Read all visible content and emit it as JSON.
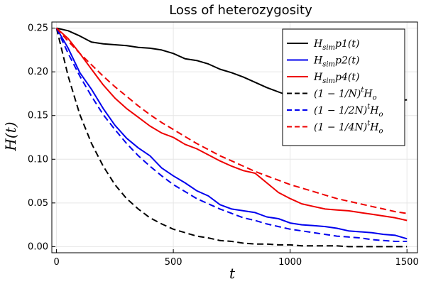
{
  "chart_data": {
    "type": "line",
    "title": "Loss of heterozygosity",
    "xlabel": "t",
    "ylabel": "H(t)",
    "xlim": [
      0,
      1500
    ],
    "ylim": [
      0,
      0.25
    ],
    "xticks": [
      0,
      500,
      1000,
      1500
    ],
    "yticks": [
      0.0,
      0.05,
      0.1,
      0.15,
      0.2,
      0.25
    ],
    "xtick_labels": [
      "0",
      "500",
      "1000",
      "1500"
    ],
    "ytick_labels": [
      "0.00",
      "0.05",
      "0.10",
      "0.15",
      "0.20",
      "0.25"
    ],
    "grid": true,
    "legend_position": "top-right",
    "series": [
      {
        "name": "H_sim p1(t)",
        "legend_label": {
          "main": "H",
          "sub": "sim",
          "rest": "p1(t)"
        },
        "color": "#000000",
        "dash": "solid",
        "x": [
          0,
          50,
          100,
          150,
          200,
          250,
          300,
          350,
          400,
          450,
          500,
          550,
          600,
          650,
          700,
          750,
          800,
          850,
          900,
          950,
          1000,
          1050,
          1100,
          1150,
          1200,
          1250,
          1300,
          1350,
          1400,
          1450,
          1500
        ],
        "y": [
          0.25,
          0.247,
          0.241,
          0.234,
          0.232,
          0.231,
          0.23,
          0.228,
          0.227,
          0.225,
          0.221,
          0.215,
          0.213,
          0.209,
          0.203,
          0.199,
          0.194,
          0.188,
          0.182,
          0.177,
          0.172,
          0.169,
          0.167,
          0.166,
          0.166,
          0.165,
          0.165,
          0.166,
          0.166,
          0.167,
          0.168
        ]
      },
      {
        "name": "H_sim p2(t)",
        "legend_label": {
          "main": "H",
          "sub": "sim",
          "rest": "p2(t)"
        },
        "color": "#0000ee",
        "dash": "solid",
        "x": [
          0,
          50,
          100,
          150,
          200,
          250,
          300,
          350,
          400,
          450,
          500,
          550,
          600,
          650,
          700,
          750,
          800,
          850,
          900,
          950,
          1000,
          1050,
          1100,
          1150,
          1200,
          1250,
          1300,
          1350,
          1400,
          1450,
          1500
        ],
        "y": [
          0.25,
          0.227,
          0.199,
          0.18,
          0.158,
          0.139,
          0.124,
          0.113,
          0.104,
          0.09,
          0.081,
          0.073,
          0.064,
          0.058,
          0.048,
          0.043,
          0.041,
          0.039,
          0.034,
          0.032,
          0.027,
          0.025,
          0.024,
          0.023,
          0.021,
          0.018,
          0.017,
          0.016,
          0.014,
          0.013,
          0.009
        ]
      },
      {
        "name": "H_sim p4(t)",
        "legend_label": {
          "main": "H",
          "sub": "sim",
          "rest": "p4(t)"
        },
        "color": "#ee0000",
        "dash": "solid",
        "x": [
          0,
          50,
          100,
          150,
          200,
          250,
          300,
          350,
          400,
          450,
          500,
          550,
          600,
          650,
          700,
          750,
          800,
          850,
          900,
          950,
          1000,
          1050,
          1100,
          1150,
          1200,
          1250,
          1300,
          1350,
          1400,
          1450,
          1500
        ],
        "y": [
          0.25,
          0.238,
          0.221,
          0.203,
          0.185,
          0.17,
          0.158,
          0.148,
          0.138,
          0.13,
          0.125,
          0.117,
          0.112,
          0.105,
          0.098,
          0.092,
          0.087,
          0.084,
          0.073,
          0.062,
          0.055,
          0.049,
          0.046,
          0.043,
          0.042,
          0.041,
          0.039,
          0.037,
          0.035,
          0.033,
          0.03
        ]
      },
      {
        "name": "(1 − 1/N)^t H_o",
        "legend_label": {
          "main": "(1 − 1/N)",
          "sup": "t",
          "rest": "H",
          "rest_sub": "o"
        },
        "color": "#000000",
        "dash": "dashed",
        "x": [
          0,
          50,
          100,
          150,
          200,
          250,
          300,
          350,
          400,
          450,
          500,
          550,
          600,
          650,
          700,
          750,
          800,
          850,
          900,
          950,
          1000,
          1050,
          1100,
          1150,
          1200,
          1250,
          1300,
          1350,
          1400,
          1450,
          1500
        ],
        "y": [
          0.25,
          0.195,
          0.151,
          0.118,
          0.092,
          0.071,
          0.055,
          0.043,
          0.033,
          0.026,
          0.02,
          0.016,
          0.012,
          0.01,
          0.007,
          0.006,
          0.004,
          0.003,
          0.003,
          0.002,
          0.002,
          0.001,
          0.001,
          0.001,
          0.001,
          0.0,
          0.0,
          0.0,
          0.0,
          0.0,
          0.0
        ]
      },
      {
        "name": "(1 − 1/2N)^t H_o",
        "legend_label": {
          "main": "(1 − 1/2N)",
          "sup": "t",
          "rest": "H",
          "rest_sub": "o"
        },
        "color": "#0000ee",
        "dash": "dashed",
        "x": [
          0,
          50,
          100,
          150,
          200,
          250,
          300,
          350,
          400,
          450,
          500,
          550,
          600,
          650,
          700,
          750,
          800,
          850,
          900,
          950,
          1000,
          1050,
          1100,
          1150,
          1200,
          1250,
          1300,
          1350,
          1400,
          1450,
          1500
        ],
        "y": [
          0.25,
          0.221,
          0.195,
          0.172,
          0.151,
          0.134,
          0.118,
          0.104,
          0.092,
          0.081,
          0.071,
          0.063,
          0.055,
          0.049,
          0.043,
          0.038,
          0.033,
          0.03,
          0.026,
          0.023,
          0.02,
          0.018,
          0.016,
          0.014,
          0.012,
          0.011,
          0.01,
          0.008,
          0.007,
          0.006,
          0.006
        ]
      },
      {
        "name": "(1 − 1/4N)^t H_o",
        "legend_label": {
          "main": "(1 − 1/4N)",
          "sup": "t",
          "rest": "H",
          "rest_sub": "o"
        },
        "color": "#ee0000",
        "dash": "dashed",
        "x": [
          0,
          50,
          100,
          150,
          200,
          250,
          300,
          350,
          400,
          450,
          500,
          550,
          600,
          650,
          700,
          750,
          800,
          850,
          900,
          950,
          1000,
          1050,
          1100,
          1150,
          1200,
          1250,
          1300,
          1350,
          1400,
          1450,
          1500
        ],
        "y": [
          0.25,
          0.235,
          0.221,
          0.208,
          0.195,
          0.183,
          0.172,
          0.161,
          0.151,
          0.142,
          0.134,
          0.126,
          0.118,
          0.111,
          0.104,
          0.098,
          0.092,
          0.086,
          0.081,
          0.076,
          0.071,
          0.067,
          0.063,
          0.059,
          0.055,
          0.052,
          0.049,
          0.046,
          0.043,
          0.04,
          0.038
        ]
      }
    ]
  }
}
